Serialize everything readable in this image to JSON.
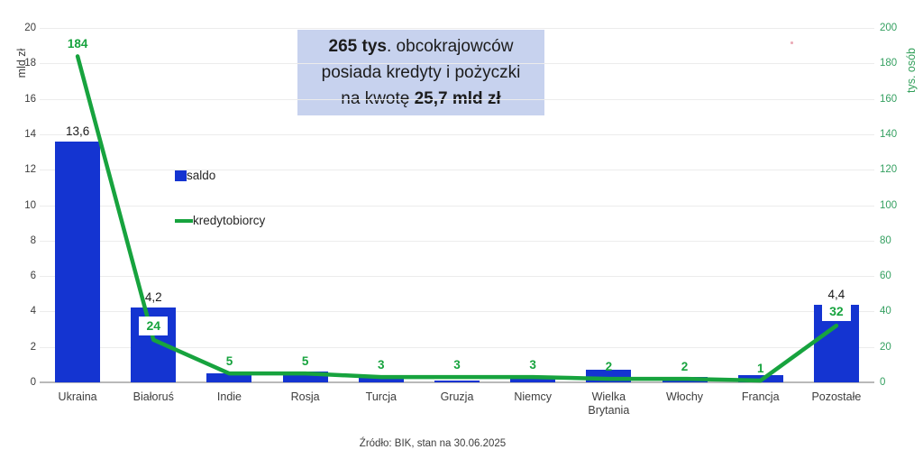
{
  "title_box": {
    "line1_bold": "265 tys",
    "line1_rest": ". obcokrajowców",
    "line2": "posiada kredyty i pożyczki",
    "line3_rest": "na kwotę ",
    "line3_bold": "25,7 mld zł"
  },
  "legend": {
    "saldo": "saldo",
    "kredytobiorcy": "kredytobiorcy"
  },
  "source": "Źródło: BIK, stan na 30.06.2025",
  "colors": {
    "bar": "#1434d1",
    "line": "#17a33e",
    "line_label": "#17a33e",
    "title_box_bg": "#c7d2ee",
    "gridline": "#ececec",
    "baseline": "#b9b9b9",
    "left_axis_text": "#3d3d3d",
    "right_axis_text": "#35a061",
    "bar_label_text": "#1a1a1a"
  },
  "chart_data": {
    "type": "combo (bar + line, dual axis)",
    "categories": [
      "Ukraina",
      "Białoruś",
      "Indie",
      "Rosja",
      "Turcja",
      "Gruzja",
      "Niemcy",
      "Wielka Brytania",
      "Włochy",
      "Francja",
      "Pozostałe"
    ],
    "series": [
      {
        "name": "saldo",
        "type": "bar",
        "axis": "left",
        "unit": "mld zł",
        "values": [
          13.6,
          4.2,
          0.5,
          0.6,
          0.3,
          0.1,
          0.3,
          0.7,
          0.3,
          0.4,
          4.4
        ],
        "labels": [
          "13,6",
          "4,2",
          null,
          null,
          null,
          null,
          null,
          null,
          null,
          null,
          "4,4"
        ]
      },
      {
        "name": "kredytobiorcy",
        "type": "line",
        "axis": "right",
        "unit": "tys. osób",
        "values": [
          184,
          24,
          5,
          5,
          3,
          3,
          3,
          2,
          2,
          1,
          32
        ],
        "labels": [
          "184",
          "24",
          "5",
          "5",
          "3",
          "3",
          "3",
          "2",
          "2",
          "1",
          "32"
        ],
        "boxed_labels": [
          false,
          true,
          false,
          false,
          false,
          false,
          false,
          false,
          false,
          false,
          true
        ]
      }
    ],
    "left_axis": {
      "title": "mld zł",
      "min": 0,
      "max": 20,
      "step": 2
    },
    "right_axis": {
      "title": "tys. osób",
      "min": 0,
      "max": 200,
      "step": 20
    },
    "grid": true,
    "legend_position": "inside-left"
  }
}
